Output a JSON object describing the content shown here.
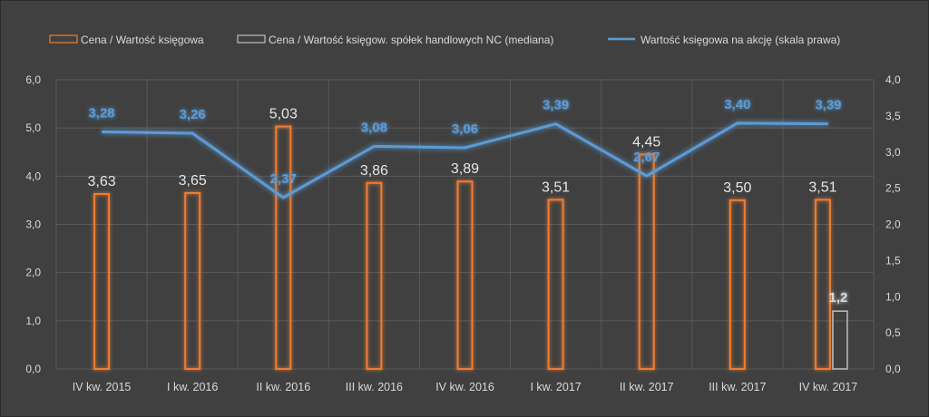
{
  "chart_data": {
    "type": "bar",
    "categories": [
      "IV kw. 2015",
      "I kw. 2016",
      "II kw. 2016",
      "III kw. 2016",
      "IV kw. 2016",
      "I kw. 2017",
      "II kw. 2017",
      "III kw. 2017",
      "IV kw. 2017"
    ],
    "series": [
      {
        "name": "Cena / Wartość księgowa",
        "type": "bar",
        "axis": "left",
        "color": "#ed7d31",
        "values": [
          3.63,
          3.65,
          5.03,
          3.86,
          3.89,
          3.51,
          4.45,
          3.5,
          3.51
        ],
        "labels": [
          "3,63",
          "3,65",
          "5,03",
          "3,86",
          "3,89",
          "3,51",
          "4,45",
          "3,50",
          "3,51"
        ]
      },
      {
        "name": "Cena / Wartość księgow. spółek handlowych NC (mediana)",
        "type": "bar",
        "axis": "left",
        "color": "#bfbfbf",
        "values": [
          null,
          null,
          null,
          null,
          null,
          null,
          null,
          null,
          1.2
        ],
        "labels": [
          "",
          "",
          "",
          "",
          "",
          "",
          "",
          "",
          "1,2"
        ]
      },
      {
        "name": "Wartość księgowa na akcję (skala prawa)",
        "type": "line",
        "axis": "right",
        "color": "#5b9bd5",
        "values": [
          3.28,
          3.26,
          2.37,
          3.08,
          3.06,
          3.39,
          2.67,
          3.4,
          3.39
        ],
        "labels": [
          "3,28",
          "3,26",
          "2,37",
          "3,08",
          "3,06",
          "3,39",
          "2,67",
          "3,40",
          "3,39"
        ]
      }
    ],
    "y_left": {
      "lim": [
        0,
        6
      ],
      "ticks": [
        0,
        1,
        2,
        3,
        4,
        5,
        6
      ],
      "tick_labels": [
        "0,0",
        "1,0",
        "2,0",
        "3,0",
        "4,0",
        "5,0",
        "6,0"
      ]
    },
    "y_right": {
      "lim": [
        0,
        4
      ],
      "ticks": [
        0,
        0.5,
        1,
        1.5,
        2,
        2.5,
        3,
        3.5,
        4
      ],
      "tick_labels": [
        "0,0",
        "0,5",
        "1,0",
        "1,5",
        "2,0",
        "2,5",
        "3,0",
        "3,5",
        "4,0"
      ]
    },
    "grid": true,
    "legend_position": "top",
    "background": "#404040"
  }
}
